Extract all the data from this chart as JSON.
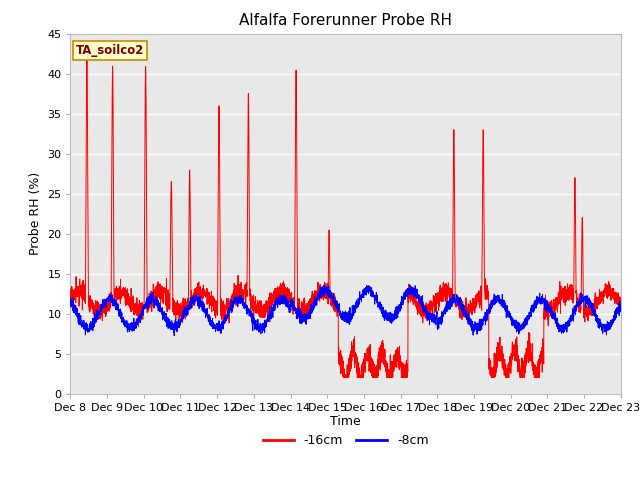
{
  "title": "Alfalfa Forerunner Probe RH",
  "ylabel": "Probe RH (%)",
  "xlabel": "Time",
  "ylim": [
    0,
    45
  ],
  "yticks": [
    0,
    5,
    10,
    15,
    20,
    25,
    30,
    35,
    40,
    45
  ],
  "x_labels": [
    "Dec 8",
    "Dec 9",
    "Dec 10",
    "Dec 11",
    "Dec 12",
    "Dec 13",
    "Dec 14",
    "Dec 15",
    "Dec 16",
    "Dec 17",
    "Dec 18",
    "Dec 19",
    "Dec 20",
    "Dec 21",
    "Dec 22",
    "Dec 23"
  ],
  "annotation_text": "TA_soilco2",
  "annotation_box_color": "#ffffcc",
  "annotation_border_color": "#cc8800",
  "annotation_text_color": "#800000",
  "line1_color": "#ff0000",
  "line2_color": "#0000ff",
  "line1_label": "-16cm",
  "line2_label": "-8cm",
  "plot_bg_color": "#e8e8e8",
  "title_fontsize": 11,
  "axis_label_fontsize": 9,
  "tick_fontsize": 8,
  "grid_color": "#ffffff",
  "num_points": 4000
}
